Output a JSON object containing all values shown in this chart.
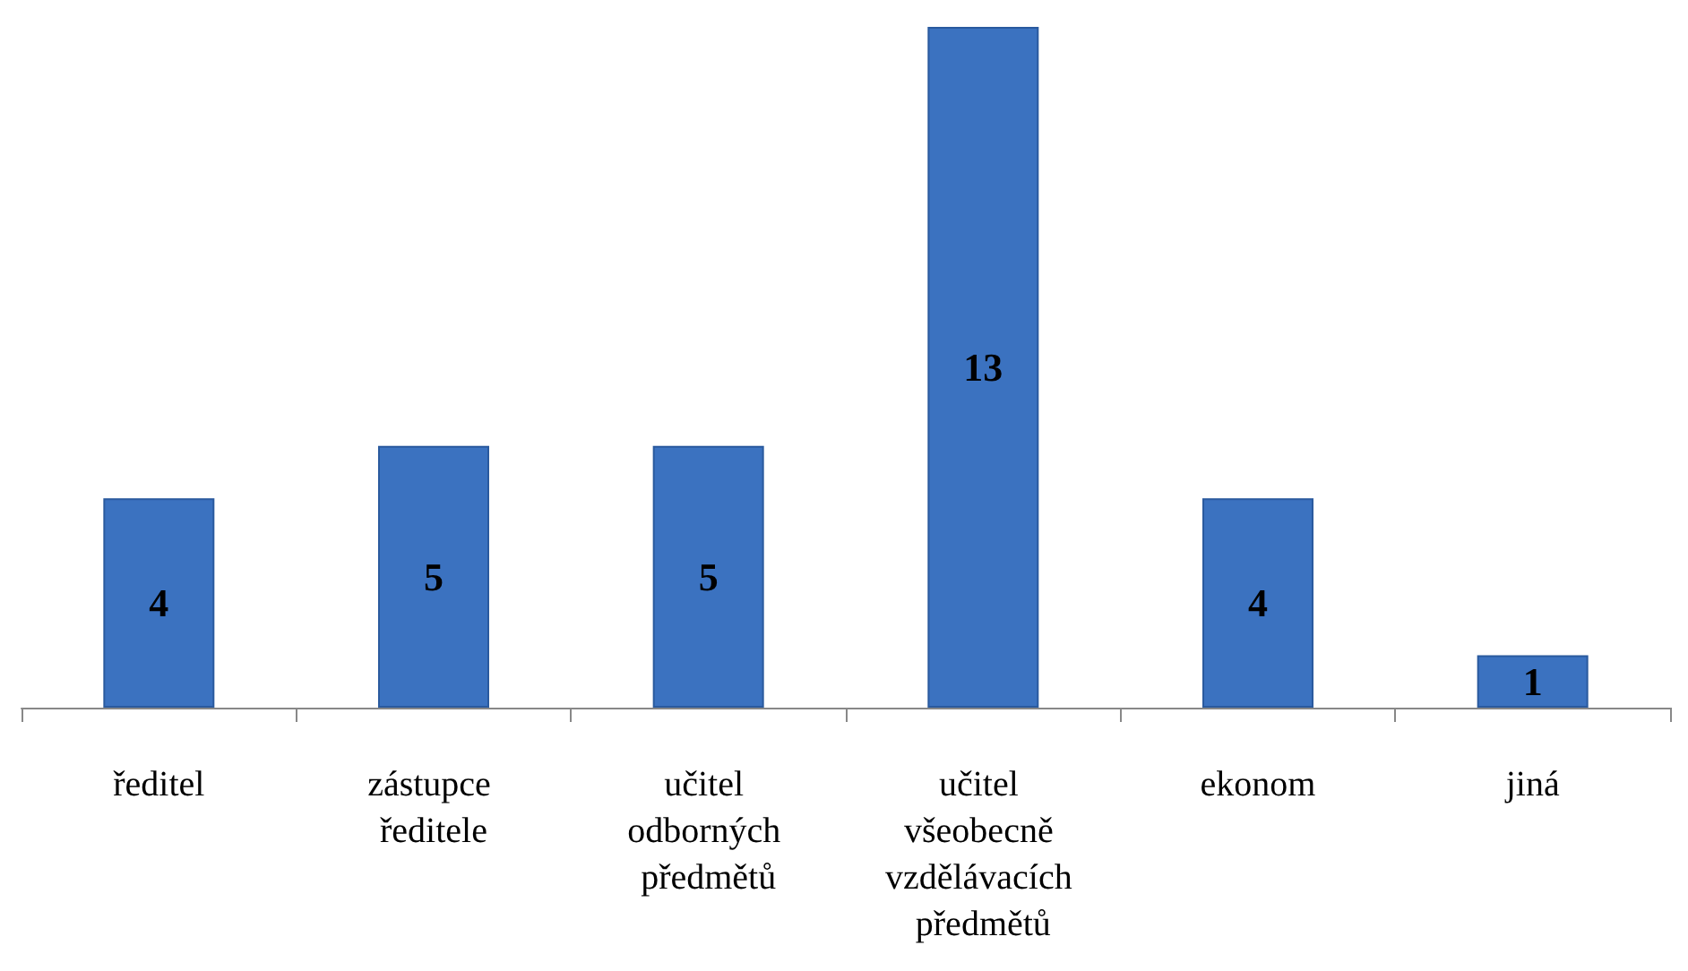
{
  "chart_data": {
    "type": "bar",
    "categories": [
      "ředitel",
      "zástupce ředitele",
      "učitel odborných předmětů",
      "učitel všeobecně vzdělávacích předmětů",
      "ekonom",
      "jiná"
    ],
    "values": [
      4,
      5,
      5,
      13,
      4,
      1
    ],
    "color": "#3b72c0",
    "data_labels": true
  }
}
